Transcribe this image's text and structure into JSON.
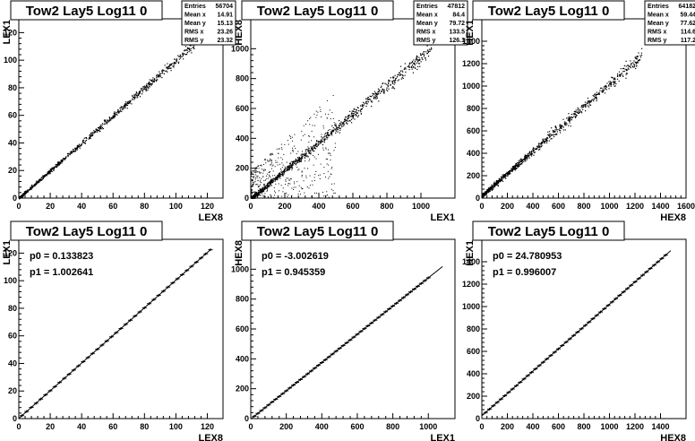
{
  "pads": [
    {
      "id": "p1",
      "title": "Tow2 Lay5 Log11 0",
      "xlabel": "LEX8",
      "ylabel": "LEX1",
      "stats": [
        [
          "Entries",
          "56704"
        ],
        [
          "Mean x",
          "14.91"
        ],
        [
          "Mean y",
          "15.13"
        ],
        [
          "RMS x",
          "23.26"
        ],
        [
          "RMS y",
          "23.32"
        ]
      ],
      "fit": []
    },
    {
      "id": "p2",
      "title": "Tow2 Lay5 Log11 0",
      "xlabel": "LEX1",
      "ylabel": "HEX8",
      "stats": [
        [
          "Entries",
          "47812"
        ],
        [
          "Mean x",
          "84.4"
        ],
        [
          "Mean y",
          "79.72"
        ],
        [
          "RMS x",
          "133.5"
        ],
        [
          "RMS y",
          "126.1"
        ]
      ],
      "fit": []
    },
    {
      "id": "p3",
      "title": "Tow2 Lay5 Log11 0",
      "xlabel": "HEX8",
      "ylabel": "HEX1",
      "stats": [
        [
          "Entries",
          "64182"
        ],
        [
          "Mean x",
          "59.44"
        ],
        [
          "Mean y",
          "77.62"
        ],
        [
          "RMS x",
          "114.6"
        ],
        [
          "RMS y",
          "117.2"
        ]
      ],
      "fit": []
    },
    {
      "id": "p4",
      "title": "Tow2 Lay5 Log11 0",
      "xlabel": "LEX8",
      "ylabel": "LEX1",
      "stats": [],
      "fit": [
        "p0 = 0.133823",
        "p1 = 1.002641"
      ]
    },
    {
      "id": "p5",
      "title": "Tow2 Lay5 Log11 0",
      "xlabel": "LEX1",
      "ylabel": "HEX8",
      "stats": [],
      "fit": [
        "p0 = -3.002619",
        "p1 = 0.945359"
      ]
    },
    {
      "id": "p6",
      "title": "Tow2 Lay5 Log11 0",
      "xlabel": "HEX8",
      "ylabel": "HEX1",
      "stats": [],
      "fit": [
        "p0 = 24.780953",
        "p1 = 0.996007"
      ]
    }
  ],
  "chart_data": [
    {
      "type": "scatter",
      "title": "Tow2 Lay5 Log11 0",
      "xlabel": "LEX8",
      "ylabel": "LEX1",
      "xlim": [
        0,
        130
      ],
      "ylim": [
        0,
        130
      ],
      "xticks": [
        0,
        20,
        40,
        60,
        80,
        100,
        120
      ],
      "yticks": [
        0,
        20,
        40,
        60,
        80,
        100,
        120
      ],
      "trend": {
        "slope": 1.0,
        "intercept": 0.13,
        "x_range": [
          0,
          120
        ],
        "spread": 1.2
      }
    },
    {
      "type": "scatter",
      "title": "Tow2 Lay5 Log11 0",
      "xlabel": "LEX1",
      "ylabel": "HEX8",
      "xlim": [
        0,
        1200
      ],
      "ylim": [
        0,
        1200
      ],
      "xticks": [
        0,
        200,
        400,
        600,
        800,
        1000
      ],
      "yticks": [
        0,
        200,
        400,
        600,
        800,
        1000
      ],
      "trend": {
        "slope": 0.945,
        "intercept": -3.0,
        "x_range": [
          0,
          1060
        ],
        "spread": 18
      },
      "outlier_region": {
        "x": [
          0,
          500
        ],
        "y": [
          0,
          600
        ]
      }
    },
    {
      "type": "scatter",
      "title": "Tow2 Lay5 Log11 0",
      "xlabel": "HEX8",
      "ylabel": "HEX1",
      "xlim": [
        0,
        1600
      ],
      "ylim": [
        0,
        1600
      ],
      "xticks": [
        0,
        200,
        400,
        600,
        800,
        1000,
        1200,
        1400,
        1600
      ],
      "yticks": [
        0,
        200,
        400,
        600,
        800,
        1000,
        1200,
        1400
      ],
      "trend": {
        "slope": 1.0,
        "intercept": 24.8,
        "x_range": [
          0,
          1250
        ],
        "spread": 22
      }
    },
    {
      "type": "line",
      "title": "Tow2 Lay5 Log11 0",
      "xlabel": "LEX8",
      "ylabel": "LEX1",
      "xlim": [
        0,
        130
      ],
      "ylim": [
        0,
        130
      ],
      "xticks": [
        0,
        20,
        40,
        60,
        80,
        100,
        120
      ],
      "yticks": [
        0,
        20,
        40,
        60,
        80,
        100,
        120
      ],
      "fit": {
        "p0": 0.133823,
        "p1": 1.002641,
        "x_range": [
          0,
          122
        ]
      },
      "profile_points": {
        "x_range": [
          2,
          122
        ],
        "step": 3
      }
    },
    {
      "type": "line",
      "title": "Tow2 Lay5 Log11 0",
      "xlabel": "LEX1",
      "ylabel": "HEX8",
      "xlim": [
        0,
        1150
      ],
      "ylim": [
        0,
        1200
      ],
      "xticks": [
        0,
        200,
        400,
        600,
        800,
        1000
      ],
      "yticks": [
        0,
        200,
        400,
        600,
        800,
        1000
      ],
      "fit": {
        "p0": -3.002619,
        "p1": 0.945359,
        "x_range": [
          0,
          1080
        ]
      },
      "profile_points": {
        "x_range": [
          20,
          1000
        ],
        "step": 20
      }
    },
    {
      "type": "line",
      "title": "Tow2 Lay5 Log11 0",
      "xlabel": "HEX8",
      "ylabel": "HEX1",
      "xlim": [
        0,
        1600
      ],
      "ylim": [
        0,
        1600
      ],
      "xticks": [
        0,
        200,
        400,
        600,
        800,
        1000,
        1200,
        1400
      ],
      "yticks": [
        0,
        200,
        400,
        600,
        800,
        1000,
        1200,
        1400
      ],
      "fit": {
        "p0": 24.780953,
        "p1": 0.996007,
        "x_range": [
          0,
          1480
        ]
      },
      "profile_points": {
        "x_range": [
          30,
          1460
        ],
        "step": 30
      }
    }
  ]
}
